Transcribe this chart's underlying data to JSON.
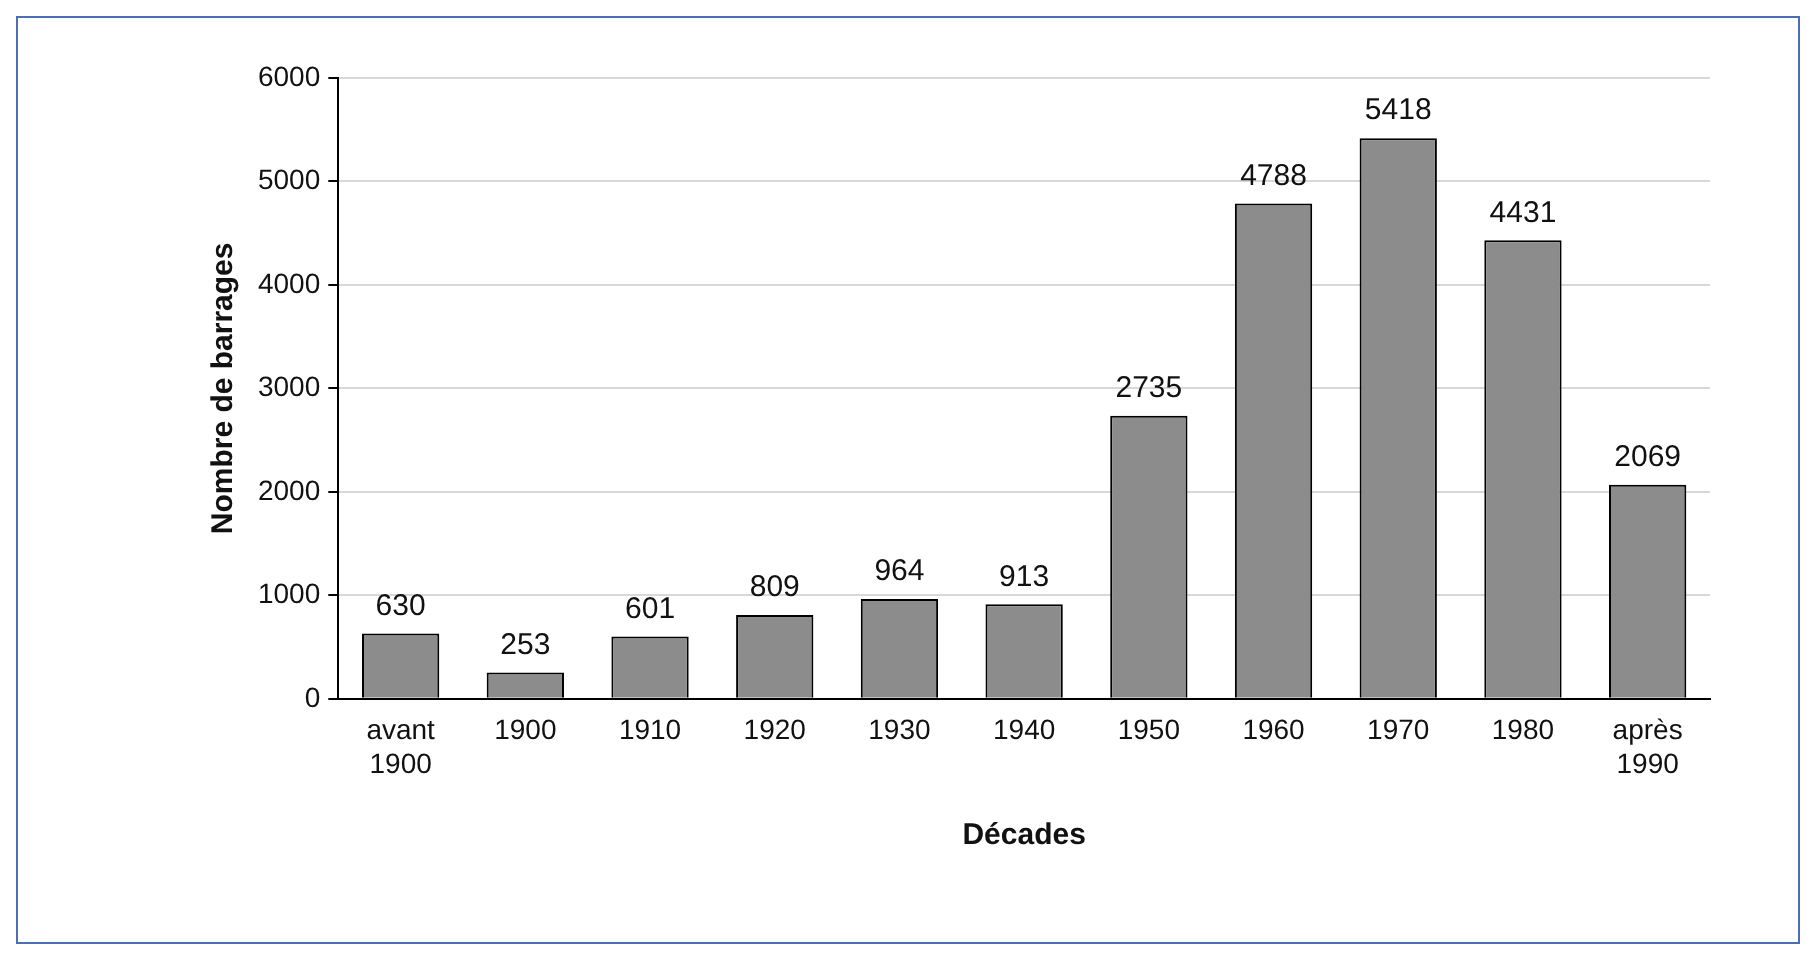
{
  "chart_data": {
    "type": "bar",
    "xlabel": "Décades",
    "ylabel": "Nombre de barrages",
    "categories": [
      "avant 1900",
      "1900",
      "1910",
      "1920",
      "1930",
      "1940",
      "1950",
      "1960",
      "1970",
      "1980",
      "après 1990"
    ],
    "values": [
      630,
      253,
      601,
      809,
      964,
      913,
      2735,
      4788,
      5418,
      4431,
      2069
    ],
    "color": "#8c8c8c",
    "ylim": [
      0,
      6000
    ],
    "yticks": [
      0,
      1000,
      2000,
      3000,
      4000,
      5000,
      6000
    ],
    "grid": "y",
    "data_labels": true,
    "legend": false
  }
}
